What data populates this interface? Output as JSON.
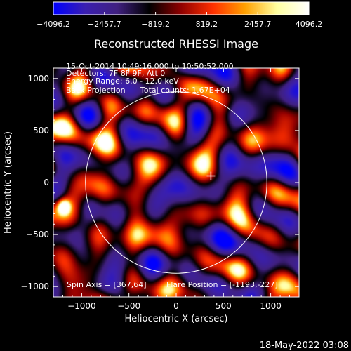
{
  "chart_data": {
    "type": "heatmap",
    "title": "Reconstructed RHESSI Image",
    "xlabel": "Heliocentric X (arcsec)",
    "ylabel": "Heliocentric Y (arcsec)",
    "xlim": [
      -1300,
      1300
    ],
    "ylim": [
      -1100,
      1100
    ],
    "xticks": [
      -1000,
      -500,
      0,
      500,
      1000
    ],
    "xtick_labels": [
      "−1000",
      "−500",
      "0",
      "500",
      "1000"
    ],
    "yticks": [
      -1000,
      -500,
      0,
      500,
      1000
    ],
    "ytick_labels": [
      "−1000",
      "−500",
      "0",
      "500",
      "1000"
    ],
    "colorbar": {
      "min": -4096.2,
      "max": 4096.2,
      "ticks": [
        -4096.2,
        -2457.7,
        -819.2,
        819.2,
        2457.7,
        4096.2
      ],
      "tick_labels": [
        "−4096.2",
        "−2457.7",
        "−819.2",
        "819.2",
        "2457.7",
        "4096.2"
      ],
      "colors": [
        "#0000ff",
        "#3a1fb0",
        "#402080",
        "#000000",
        "#900000",
        "#ff3000",
        "#ffa000",
        "#ffffa0",
        "#ffffff"
      ]
    },
    "solar_limb_radius_arcsec": 960,
    "disk_center_marker": {
      "x": 367,
      "y": 64
    },
    "bright_source": {
      "x": -1193,
      "y": -227
    },
    "grid": false
  },
  "annotations": {
    "time_range": "15-Oct-2014 10:49:16.000 to 10:50:52.000",
    "detectors": "Detectors: 7F 8F 9F, Att 0",
    "energy_range": "Energy Range: 6.0 - 12.0 keV",
    "method": "Back Projection",
    "total_counts": "Total counts: 1.67E+04",
    "spin_axis": "Spin Axis = [367,64]",
    "flare_position": "Flare Position = [-1193,-227]"
  },
  "footer": {
    "plot_date": "18-May-2022 03:08"
  }
}
